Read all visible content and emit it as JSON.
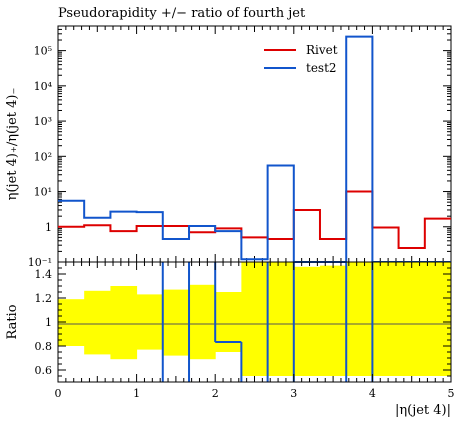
{
  "title": "Pseudorapidity +/− ratio of fourth jet",
  "chart_data": [
    {
      "type": "line",
      "title": "Pseudorapidity +/− ratio of fourth jet",
      "ylabel": "η(jet 4)₊/η(jet 4)₋",
      "xlabel": "",
      "yscale": "log",
      "ylim": [
        0.1,
        500000
      ],
      "xlim": [
        0,
        5
      ],
      "legend_position": "top-right",
      "yticks": [
        "10⁻¹",
        "1",
        "10¹",
        "10²",
        "10³",
        "10⁴",
        "10⁵"
      ],
      "bin_edges": [
        0,
        0.333,
        0.667,
        1.0,
        1.333,
        1.667,
        2.0,
        2.333,
        2.667,
        3.0,
        3.333,
        3.667,
        4.0,
        4.333,
        4.667,
        5.0
      ],
      "series": [
        {
          "name": "Rivet",
          "color": "#dd0000",
          "values": [
            1.0,
            1.1,
            0.75,
            1.05,
            1.05,
            0.7,
            0.9,
            0.5,
            0.45,
            3.0,
            0.45,
            10.0,
            0.95,
            0.25,
            1.7
          ]
        },
        {
          "name": "test2",
          "color": "#1155cc",
          "values": [
            5.5,
            1.8,
            2.7,
            2.6,
            0.45,
            1.05,
            0.75,
            0.12,
            55,
            0.08,
            0.08,
            250000,
            0.08,
            0.08,
            0.08
          ]
        }
      ]
    },
    {
      "type": "line",
      "xlabel": "|η(jet 4)|",
      "ylabel": "Ratio",
      "xlim": [
        0,
        5
      ],
      "ylim": [
        0.5,
        1.5
      ],
      "xticks": [
        "0",
        "1",
        "2",
        "3",
        "4",
        "5"
      ],
      "yticks": [
        "0.6",
        "0.8",
        "1",
        "1.2",
        "1.4"
      ],
      "band_color": "#ffff00",
      "band": {
        "lower": [
          0.8,
          0.73,
          0.69,
          0.77,
          0.72,
          0.69,
          0.75,
          0.55,
          0.55,
          0.55,
          0.55,
          0.55,
          0.55,
          0.55,
          0.55
        ],
        "upper": [
          1.19,
          1.26,
          1.3,
          1.23,
          1.27,
          1.31,
          1.25,
          1.5,
          1.5,
          1.46,
          1.47,
          1.5,
          1.5,
          1.5,
          1.5
        ]
      },
      "series": [
        {
          "name": "test2",
          "color": "#1155cc",
          "values": [
            null,
            null,
            null,
            null,
            null,
            null,
            0.87,
            null,
            null,
            null,
            null,
            null,
            null,
            null,
            null
          ]
        }
      ]
    }
  ]
}
